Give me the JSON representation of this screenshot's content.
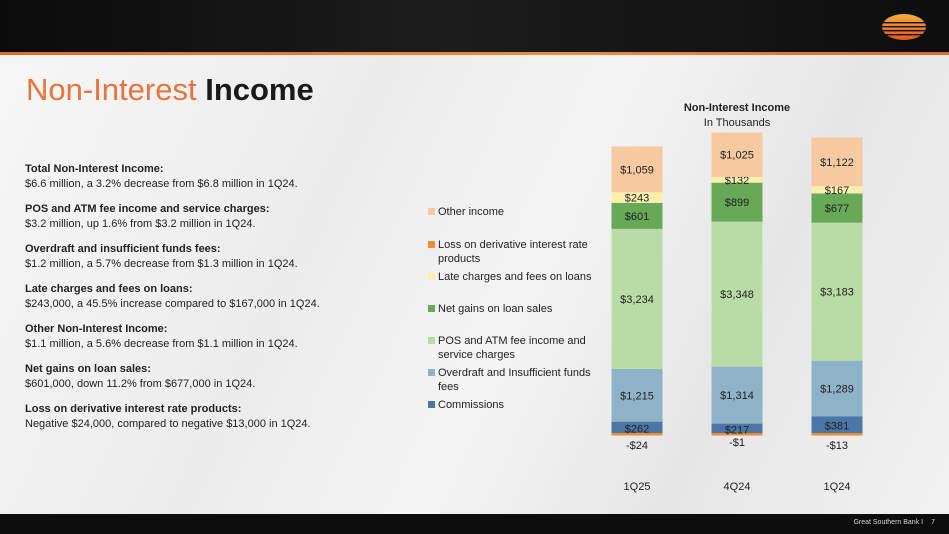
{
  "title": {
    "light": "Non-Interest",
    "bold": "Income"
  },
  "bullets": [
    {
      "head": "Total Non-Interest Income:",
      "text": "$6.6 million, a 3.2% decrease from $6.8 million in 1Q24."
    },
    {
      "head": "POS and ATM fee income and service charges:",
      "text": "$3.2 million, up 1.6% from $3.2 million in 1Q24."
    },
    {
      "head": "Overdraft and insufficient funds fees:",
      "text": "$1.2 million, a 5.7% decrease from $1.3 million in 1Q24."
    },
    {
      "head": "Late charges and fees on loans:",
      "text": "$243,000, a 45.5% increase compared to $167,000 in 1Q24."
    },
    {
      "head": "Other Non-Interest Income:",
      "text": "$1.1 million, a 5.6% decrease from $1.1 million in 1Q24."
    },
    {
      "head": "Net gains on loan sales:",
      "text": "$601,000, down 11.2% from $677,000 in 1Q24."
    },
    {
      "head": "Loss on derivative interest rate products:",
      "text": "Negative $24,000, compared to negative $13,000 in 1Q24."
    }
  ],
  "chart_data": {
    "type": "bar",
    "stacked": true,
    "title": "Non-Interest Income",
    "subtitle": "In Thousands",
    "categories": [
      "1Q25",
      "4Q24",
      "1Q24"
    ],
    "series": [
      {
        "name": "Commissions",
        "values": [
          262,
          217,
          381
        ],
        "labels": [
          "$262",
          "$217",
          "$381"
        ],
        "color": "#4a77a8"
      },
      {
        "name": "Overdraft and Insufficient funds fees",
        "values": [
          1215,
          1314,
          1289
        ],
        "labels": [
          "$1,215",
          "$1,314",
          "$1,289"
        ],
        "color": "#8eb3c6"
      },
      {
        "name": "POS and ATM fee income and service charges",
        "values": [
          3234,
          3348,
          3183
        ],
        "labels": [
          "$3,234",
          "$3,348",
          "$3,183"
        ],
        "color": "#b9dca6"
      },
      {
        "name": "Net gains on loan sales",
        "values": [
          601,
          899,
          677
        ],
        "labels": [
          "$601",
          "$899",
          "$677"
        ],
        "color": "#67a957"
      },
      {
        "name": "Late charges and fees on loans",
        "values": [
          243,
          132,
          167
        ],
        "labels": [
          "$243",
          "$132",
          "$167"
        ],
        "color": "#fcefae"
      },
      {
        "name": "Loss on derivative interest rate products",
        "values": [
          -24,
          -1,
          -13
        ],
        "labels": [
          "-$24",
          "-$1",
          "-$13"
        ],
        "color": "#f08b2e"
      },
      {
        "name": "Other income",
        "values": [
          1059,
          1025,
          1122
        ],
        "labels": [
          "$1,059",
          "$1,025",
          "$1,122"
        ],
        "color": "#f6c9a1"
      }
    ],
    "legend_position": "left",
    "grid": false
  },
  "footer": {
    "company": "Great Southern Bank  I",
    "page": "7"
  }
}
